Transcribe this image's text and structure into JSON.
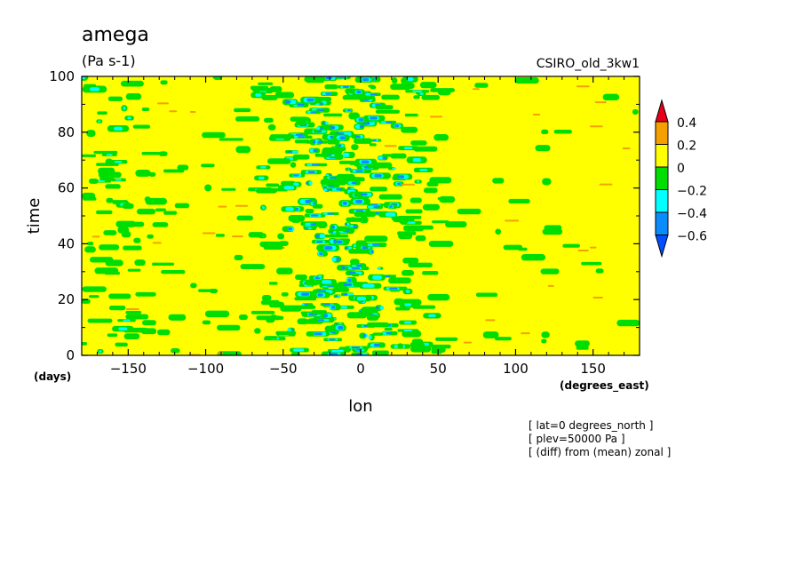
{
  "chart_data": {
    "type": "heatmap",
    "title": "amega",
    "units": "(Pa s-1)",
    "model": "CSIRO_old_3kw1",
    "xlabel": "lon",
    "xunits": "(degrees_east)",
    "ylabel": "time",
    "yunits": "(days)",
    "xlim": [
      -180,
      180
    ],
    "ylim": [
      0,
      100
    ],
    "x_ticks": [
      -150,
      -100,
      -50,
      0,
      50,
      100,
      150
    ],
    "x_tick_labels": [
      "−150",
      "−100",
      "−50",
      "0",
      "50",
      "100",
      "150"
    ],
    "y_ticks": [
      0,
      20,
      40,
      60,
      80,
      100
    ],
    "y_tick_labels": [
      "0",
      "20",
      "40",
      "60",
      "80",
      "100"
    ],
    "levels": [
      -0.6,
      -0.4,
      -0.2,
      0,
      0.2,
      0.4
    ],
    "level_labels": [
      "0.4",
      "0.2",
      "0",
      "−0.2",
      "−0.4",
      "−0.6"
    ],
    "colorbar": {
      "colors_top_to_bottom": [
        "#e8001a",
        "#f5a000",
        "#ffff00",
        "#00dd00",
        "#00ffff",
        "#0a8cff",
        "#0050ff"
      ],
      "ranges_top_to_bottom": [
        ">0.4",
        "0.2 to 0.4",
        "0 to 0.2",
        "-0.2 to 0",
        "-0.4 to -0.2",
        "-0.6 to -0.4",
        "<-0.6"
      ]
    },
    "notes": [
      "[ lat=0 degrees_north ]",
      "[ plev=50000 Pa ]",
      "[ (diff) from (mean) zonal ]"
    ]
  }
}
